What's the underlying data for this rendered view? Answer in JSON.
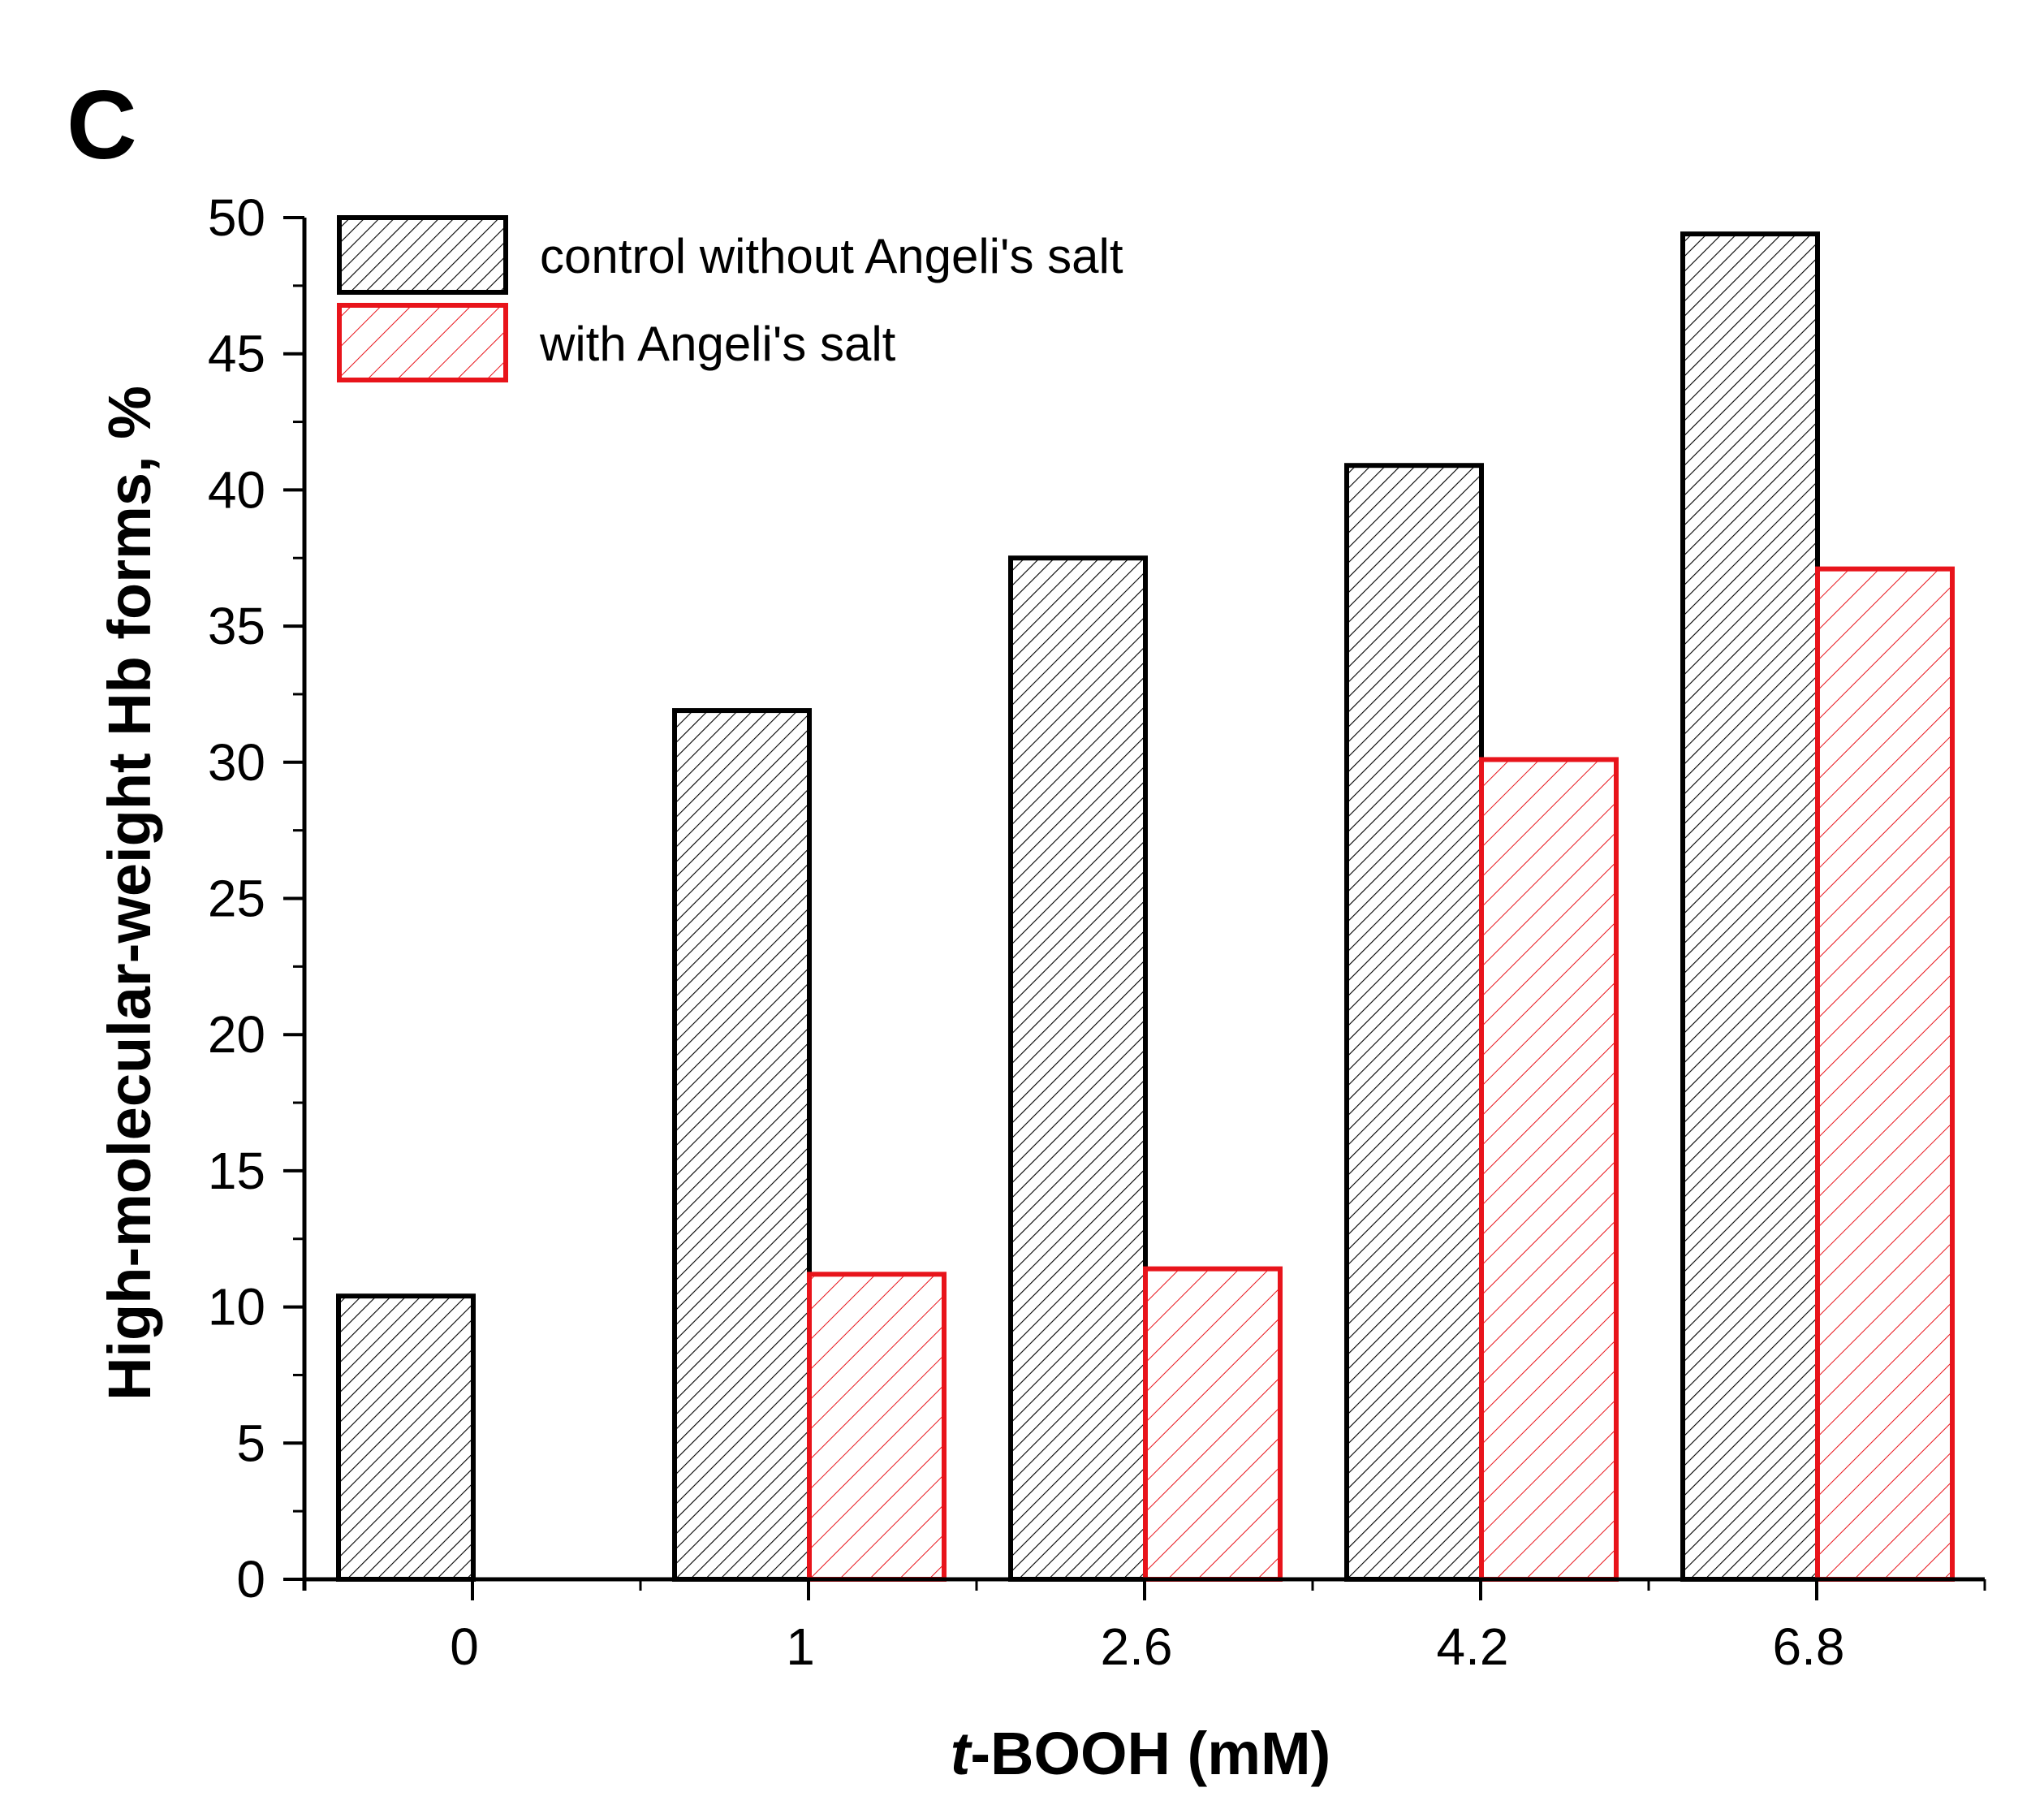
{
  "panel_label": "C",
  "chart_data": {
    "type": "bar",
    "title": "",
    "xlabel_prefix": "t",
    "xlabel_rest": "-BOOH (mM)",
    "ylabel": "High-molecular-weight Hb forms, %",
    "categories": [
      "0",
      "1",
      "2.6",
      "4.2",
      "6.8"
    ],
    "ylim": [
      0,
      50
    ],
    "yticks": [
      0,
      5,
      10,
      15,
      20,
      25,
      30,
      35,
      40,
      45,
      50
    ],
    "grid": false,
    "legend_position": "top-left",
    "series": [
      {
        "name": "control without Angeli's salt",
        "values": [
          10.4,
          31.9,
          37.5,
          40.9,
          49.4
        ],
        "color": "#000000",
        "pattern": "dense-diagonal-hatch"
      },
      {
        "name": "with Angeli's salt",
        "values": [
          null,
          11.2,
          11.4,
          30.1,
          37.1
        ],
        "color": "#e8141b",
        "pattern": "sparse-diagonal-hatch"
      }
    ]
  }
}
